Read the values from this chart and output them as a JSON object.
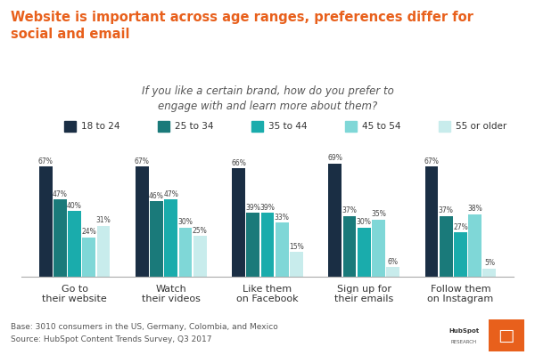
{
  "title": "Website is important across age ranges, preferences differ for\nsocial and email",
  "subtitle": "If you like a certain brand, how do you prefer to\nengage with and learn more about them?",
  "categories": [
    "Go to\ntheir website",
    "Watch\ntheir videos",
    "Like them\non Facebook",
    "Sign up for\ntheir emails",
    "Follow them\non Instagram"
  ],
  "age_groups": [
    "18 to 24",
    "25 to 34",
    "35 to 44",
    "45 to 54",
    "55 or older"
  ],
  "colors": [
    "#1a2e44",
    "#1a7a7a",
    "#1aacac",
    "#7fd7d7",
    "#c8ecec"
  ],
  "data": [
    [
      67,
      67,
      66,
      69,
      67
    ],
    [
      47,
      46,
      39,
      37,
      37
    ],
    [
      40,
      47,
      39,
      30,
      27
    ],
    [
      24,
      30,
      33,
      35,
      38
    ],
    [
      31,
      25,
      15,
      6,
      5
    ]
  ],
  "footnote1": "Base: 3010 consumers in the US, Germany, Colombia, and Mexico",
  "footnote2": "Source: HubSpot Content Trends Survey, Q3 2017",
  "title_color": "#e8601c",
  "subtitle_color": "#555555",
  "bar_label_color": "#444444",
  "background_color": "#ffffff"
}
